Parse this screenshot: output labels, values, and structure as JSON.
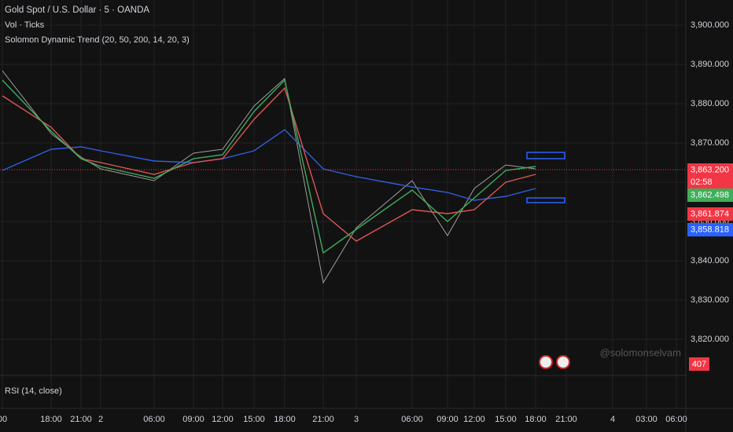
{
  "chart_data": {
    "type": "line",
    "title": "Gold Spot / U.S. Dollar · 5 · OANDA",
    "indicators": [
      "Vol · Ticks",
      "Solomon Dynamic Trend (20, 50, 200, 14, 20, 3)"
    ],
    "lower_pane": "RSI (14, close)",
    "watermark": "@solomonselvam",
    "categories": [
      "00",
      "18:00",
      "21:00",
      "2",
      "06:00",
      "09:00",
      "12:00",
      "15:00",
      "18:00",
      "21:00",
      "3",
      "06:00",
      "09:00",
      "12:00",
      "15:00",
      "18:00",
      "21:00",
      "4",
      "03:00",
      "06:00"
    ],
    "series": [
      {
        "color": "#9e9e9e",
        "values": [
          3888.4,
          3872.4,
          3866.4,
          3863.4,
          3860.4,
          3867.4,
          3868.4,
          3879.4,
          3886.4,
          3834.4,
          3848.4,
          3860.4,
          3846.4,
          3858.4,
          3864.4,
          3863.4,
          null,
          null,
          null,
          null
        ]
      },
      {
        "color": "#2f5ee0",
        "values": [
          3863,
          3868.4,
          3869,
          3868,
          3865.4,
          3865,
          3866,
          3868,
          3873.4,
          3863.4,
          3861.4,
          3858.8,
          3857.4,
          3855.4,
          3856.4,
          3858.4,
          null,
          null,
          null,
          null
        ]
      },
      {
        "color": "#e05555",
        "values": [
          3882,
          3874,
          3866,
          3865,
          3862,
          3865,
          3866,
          3876,
          3884,
          3852,
          3845,
          3853,
          3852,
          3853,
          3860,
          3862,
          null,
          null,
          null,
          null
        ]
      },
      {
        "color": "#3fae5a",
        "values": [
          3886,
          3873,
          3866,
          3864,
          3861,
          3866,
          3867,
          3878,
          3886,
          3842,
          3848,
          3858,
          3850,
          3856,
          3863,
          3864,
          null,
          null,
          null,
          null
        ]
      }
    ],
    "ylim": [
      3810.8,
      3906.4
    ],
    "yticks": [
      {
        "value": 3820,
        "label": "3,820.000"
      },
      {
        "value": 3830,
        "label": "3,830.000"
      },
      {
        "value": 3840,
        "label": "3,840.000"
      },
      {
        "value": 3850,
        "label": "3,850.000"
      },
      {
        "value": 3860,
        "label": "3,860.000"
      },
      {
        "value": 3870,
        "label": "3,870.000"
      },
      {
        "value": 3880,
        "label": "3,880.000"
      },
      {
        "value": 3890,
        "label": "3,890.000"
      },
      {
        "value": 3900,
        "label": "3,900.000"
      }
    ],
    "grid": true,
    "price_labels": [
      {
        "value": 3863.2,
        "label": "3,863.200",
        "color": "#f23645"
      },
      {
        "value": 3862.498,
        "label": "3,862.498",
        "color": "#3fae5a"
      },
      {
        "value": 3861.874,
        "label": "3,861.874",
        "color": "#f23645"
      },
      {
        "value": 3858.818,
        "label": "3,858.818",
        "color": "#2962ff"
      }
    ],
    "countdown": "02:58",
    "volume_last": 407
  }
}
